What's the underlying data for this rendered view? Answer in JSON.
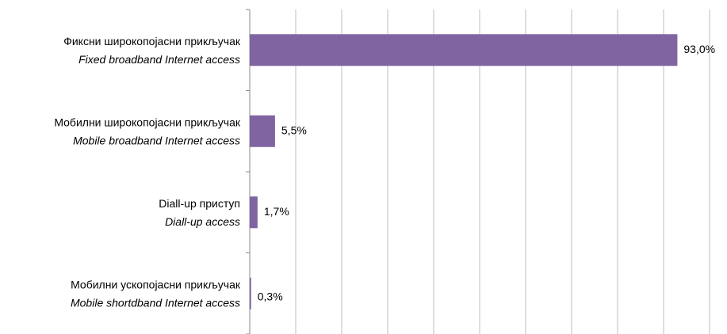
{
  "chart_data": {
    "type": "bar",
    "orientation": "horizontal",
    "categories": [
      [
        "Фиксни широкопојасни прикључак",
        "Fixed broadband Internet access"
      ],
      [
        "Мобилни широкопојасни прикључак",
        "Mobile broadband Internet access"
      ],
      [
        "Diall-up приступ",
        "Diall-up access"
      ],
      [
        "Мобилни ускопојасни прикључак",
        "Mobile shortdband Internet access"
      ]
    ],
    "values": [
      93.0,
      5.5,
      1.7,
      0.3
    ],
    "value_labels": [
      "93,0%",
      "5,5%",
      "1,7%",
      "0,3%"
    ],
    "color": "#8064a2",
    "xlim": [
      0,
      100
    ],
    "xticks": [
      0,
      10,
      20,
      30,
      40,
      50,
      60,
      70,
      80,
      90,
      100
    ],
    "grid": true
  }
}
